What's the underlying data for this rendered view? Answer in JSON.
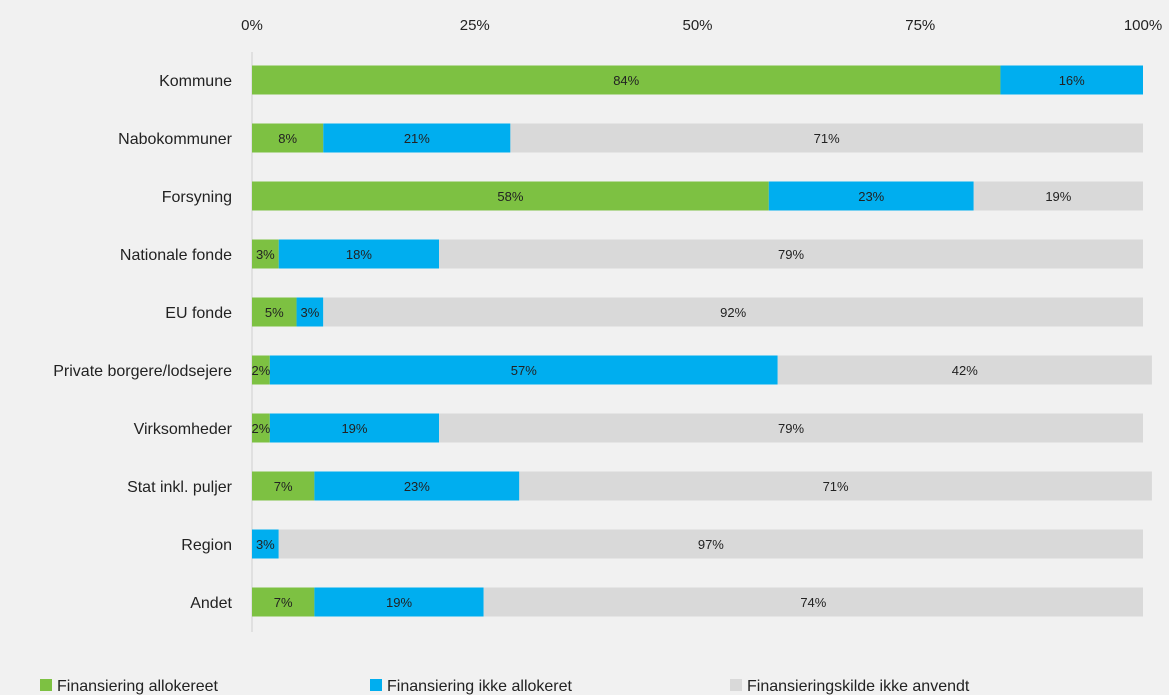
{
  "chart_data": {
    "type": "bar",
    "orientation": "horizontal",
    "stacked": true,
    "xlim": [
      0,
      100
    ],
    "x_ticks": [
      "0%",
      "25%",
      "50%",
      "75%",
      "100%"
    ],
    "categories": [
      "Kommune",
      "Nabokommuner",
      "Forsyning",
      "Nationale fonde",
      "EU fonde",
      "Private borgere/lodsejere",
      "Virksomheder",
      "Stat inkl. puljer",
      "Region",
      "Andet"
    ],
    "series": [
      {
        "name": "Finansiering allokereet",
        "color": "#7dc142",
        "values": [
          84,
          8,
          58,
          3,
          5,
          2,
          2,
          7,
          0,
          7
        ],
        "labels": [
          "84%",
          "8%",
          "58%",
          "3%",
          "5%",
          "2%",
          "2%",
          "7%",
          "",
          "7%"
        ]
      },
      {
        "name": "Finansiering ikke allokeret",
        "color": "#00aeef",
        "values": [
          16,
          21,
          23,
          18,
          3,
          57,
          19,
          23,
          3,
          19
        ],
        "labels": [
          "16%",
          "21%",
          "23%",
          "18%",
          "3%",
          "57%",
          "19%",
          "23%",
          "3%",
          "19%"
        ]
      },
      {
        "name": "Finansieringskilde ikke anvendt",
        "color": "#d9d9d9",
        "values": [
          0,
          71,
          19,
          79,
          92,
          42,
          79,
          71,
          97,
          74
        ],
        "labels": [
          "",
          "71%",
          "19%",
          "79%",
          "92%",
          "42%",
          "79%",
          "71%",
          "97%",
          "74%"
        ]
      }
    ],
    "grid": false,
    "legend_position": "bottom"
  }
}
